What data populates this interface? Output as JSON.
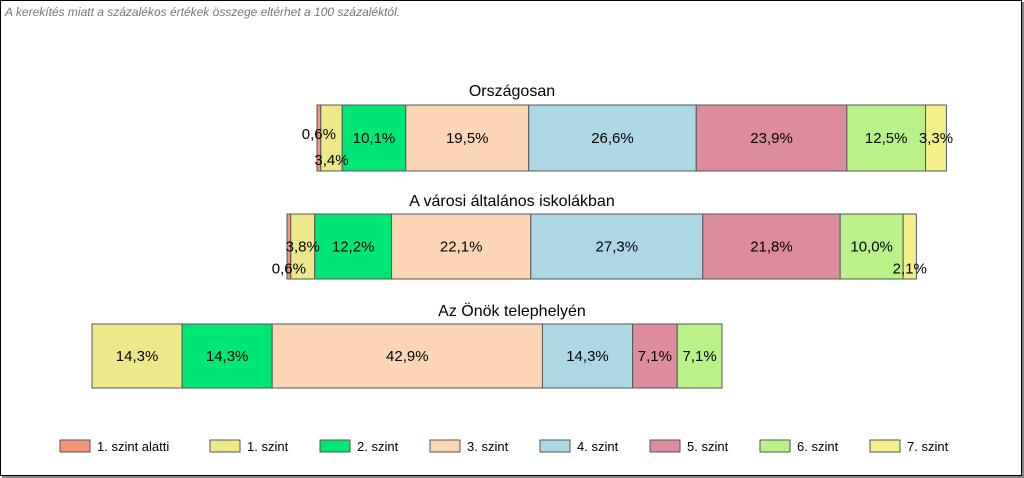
{
  "note": "A kerekítés miatt a  százalékos értékek összege eltérhet a 100 százaléktól.",
  "chart_data": {
    "type": "bar",
    "stacked": true,
    "orientation": "horizontal",
    "value_format": "percent",
    "legend_position": "bottom",
    "categories": [
      "Országosan",
      "A városi általános iskolákban",
      "Az Önök telephelyén"
    ],
    "series": [
      {
        "name": "1. szint alatti",
        "color": "#f4967a",
        "values": [
          0.6,
          0.6,
          0
        ]
      },
      {
        "name": "1. szint",
        "color": "#ede98a",
        "values": [
          3.4,
          3.8,
          14.3
        ]
      },
      {
        "name": "2. szint",
        "color": "#00e676",
        "values": [
          10.1,
          12.2,
          14.3
        ]
      },
      {
        "name": "3. szint",
        "color": "#fcd6b4",
        "values": [
          19.5,
          22.1,
          42.9
        ]
      },
      {
        "name": "4. szint",
        "color": "#acd8e6",
        "values": [
          26.6,
          27.3,
          14.3
        ]
      },
      {
        "name": "5. szint",
        "color": "#dc8c9c",
        "values": [
          23.9,
          21.8,
          7.1
        ]
      },
      {
        "name": "6. szint",
        "color": "#b8f288",
        "values": [
          12.5,
          10.0,
          7.1
        ]
      },
      {
        "name": "7. szint",
        "color": "#f6f08a",
        "values": [
          3.3,
          2.1,
          0
        ]
      }
    ],
    "labels": [
      [
        "0,6%",
        "3,4%",
        "10,1%",
        "19,5%",
        "26,6%",
        "23,9%",
        "12,5%",
        "3,3%"
      ],
      [
        "0,6%",
        "3,8%",
        "12,2%",
        "22,1%",
        "27,3%",
        "21,8%",
        "10,0%",
        "2,1%"
      ],
      [
        "",
        "14,3%",
        "14,3%",
        "42,9%",
        "14,3%",
        "7,1%",
        "7,1%",
        ""
      ]
    ]
  }
}
